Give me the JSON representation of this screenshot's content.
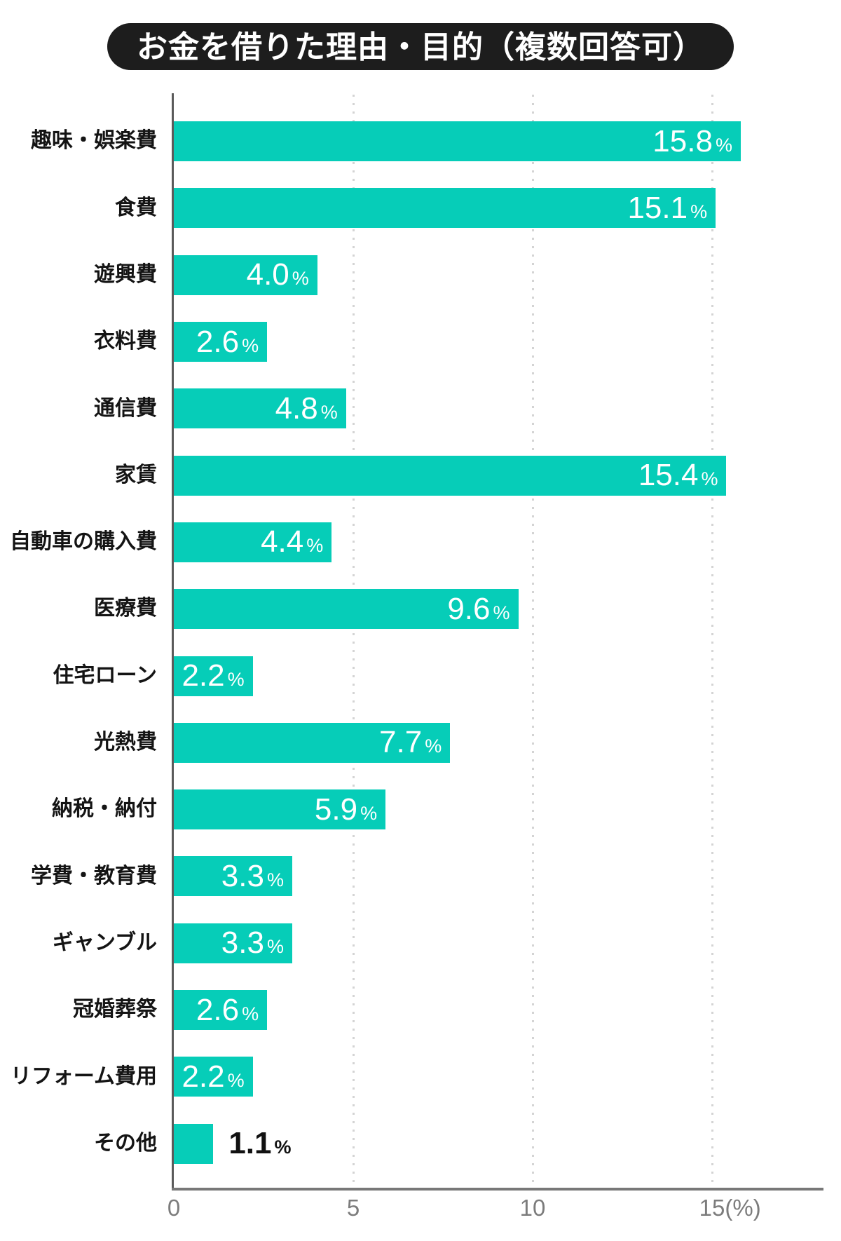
{
  "title": "お金を借りた理由・目的（複数回答可）",
  "colors": {
    "bar": "#06cdb8",
    "title_bg": "#1d1d1d",
    "title_text": "#ffffff",
    "y_axis": "#5a5a5a",
    "x_axis": "#787878",
    "gridline": "#d4d4d4",
    "category_label": "#141414",
    "value_inside": "#ffffff",
    "value_outside": "#111111",
    "tick": "#7c7c7c"
  },
  "chart_data": {
    "type": "bar",
    "orientation": "horizontal",
    "title": "お金を借りた理由・目的（複数回答可）",
    "unit": "%",
    "categories": [
      "趣味・娯楽費",
      "食費",
      "遊興費",
      "衣料費",
      "通信費",
      "家賃",
      "自動車の購入費",
      "医療費",
      "住宅ローン",
      "光熱費",
      "納税・納付",
      "学費・教育費",
      "ギャンブル",
      "冠婚葬祭",
      "リフォーム費用",
      "その他"
    ],
    "values": [
      15.8,
      15.1,
      4.0,
      2.6,
      4.8,
      15.4,
      4.4,
      9.6,
      2.2,
      7.7,
      5.9,
      3.3,
      3.3,
      2.6,
      2.2,
      1.1
    ],
    "value_labels": [
      "15.8",
      "15.1",
      "4.0",
      "2.6",
      "4.8",
      "15.4",
      "4.4",
      "9.6",
      "2.2",
      "7.7",
      "5.9",
      "3.3",
      "3.3",
      "2.6",
      "2.2",
      "1.1"
    ],
    "value_label_inside": [
      true,
      true,
      true,
      true,
      true,
      true,
      true,
      true,
      true,
      true,
      true,
      true,
      true,
      true,
      true,
      false
    ],
    "xlim": [
      0,
      18.1
    ],
    "grid_values": [
      5,
      10,
      15
    ],
    "x_ticks": [
      {
        "label": "0",
        "value": 0,
        "suffix": ""
      },
      {
        "label": "5",
        "value": 5,
        "suffix": ""
      },
      {
        "label": "10",
        "value": 10,
        "suffix": ""
      },
      {
        "label": "15",
        "value": 15,
        "suffix": "(%)"
      }
    ],
    "grid": true,
    "legend": false
  }
}
